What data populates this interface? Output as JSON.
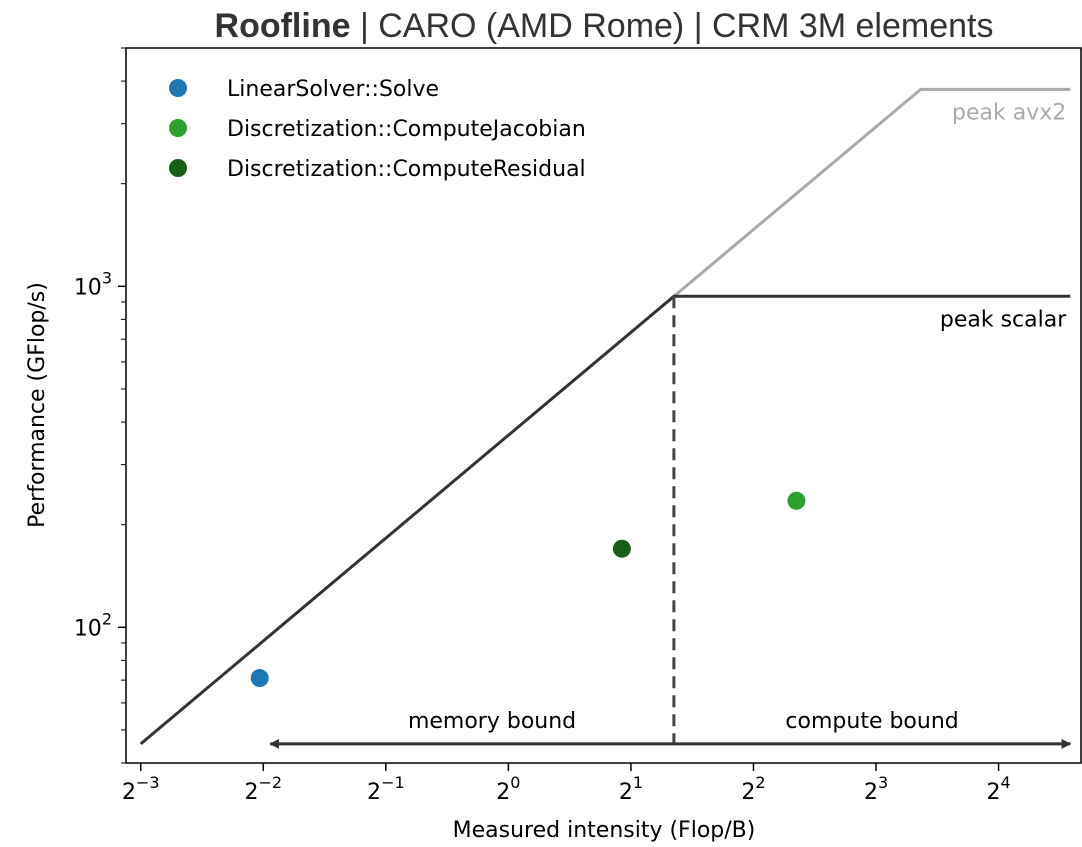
{
  "chart_data": {
    "type": "scatter",
    "title_bold": "Roofline",
    "title_rest": " | CARO (AMD Rome) | CRM 3M elements",
    "xlabel": "Measured intensity (Flop/B)",
    "ylabel": "Performance (GFlop/s)",
    "x_scale": "log2",
    "y_scale": "log10",
    "xlim": [
      0.115,
      25.5
    ],
    "ylim": [
      40,
      5000
    ],
    "x_ticks": [
      {
        "base": "2",
        "exp": "−3",
        "value": 0.125
      },
      {
        "base": "2",
        "exp": "−2",
        "value": 0.25
      },
      {
        "base": "2",
        "exp": "−1",
        "value": 0.5
      },
      {
        "base": "2",
        "exp": "0",
        "value": 1
      },
      {
        "base": "2",
        "exp": "1",
        "value": 2
      },
      {
        "base": "2",
        "exp": "2",
        "value": 4
      },
      {
        "base": "2",
        "exp": "3",
        "value": 8
      },
      {
        "base": "2",
        "exp": "4",
        "value": 16
      }
    ],
    "y_ticks": [
      {
        "base": "10",
        "exp": "2",
        "value": 100
      },
      {
        "base": "10",
        "exp": "3",
        "value": 1000
      }
    ],
    "series": [
      {
        "name": "LinearSolver::Solve",
        "color": "#1f77b4",
        "x": 0.245,
        "y": 71
      },
      {
        "name": "Discretization::ComputeJacobian",
        "color": "#2ca02c",
        "x": 5.1,
        "y": 235
      },
      {
        "name": "Discretization::ComputeResidual",
        "color": "#175f17",
        "x": 1.9,
        "y": 170
      }
    ],
    "roofs": [
      {
        "label": "peak avx2",
        "color": "#aaaaaa",
        "points": [
          [
            2.55,
            935
          ],
          [
            10.3,
            3780
          ],
          [
            24,
            3780
          ]
        ]
      },
      {
        "label": "peak scalar",
        "color": "#333333",
        "points": [
          [
            0.125,
            45.5
          ],
          [
            2.55,
            935
          ],
          [
            24,
            935
          ]
        ]
      }
    ],
    "ridge_x": 2.55,
    "regions": {
      "memory_label": "memory bound",
      "compute_label": "compute bound",
      "arrow_y": 45.5,
      "left_x": 0.26,
      "right_x": 24
    },
    "legend_position": "upper-left",
    "grid": false
  }
}
